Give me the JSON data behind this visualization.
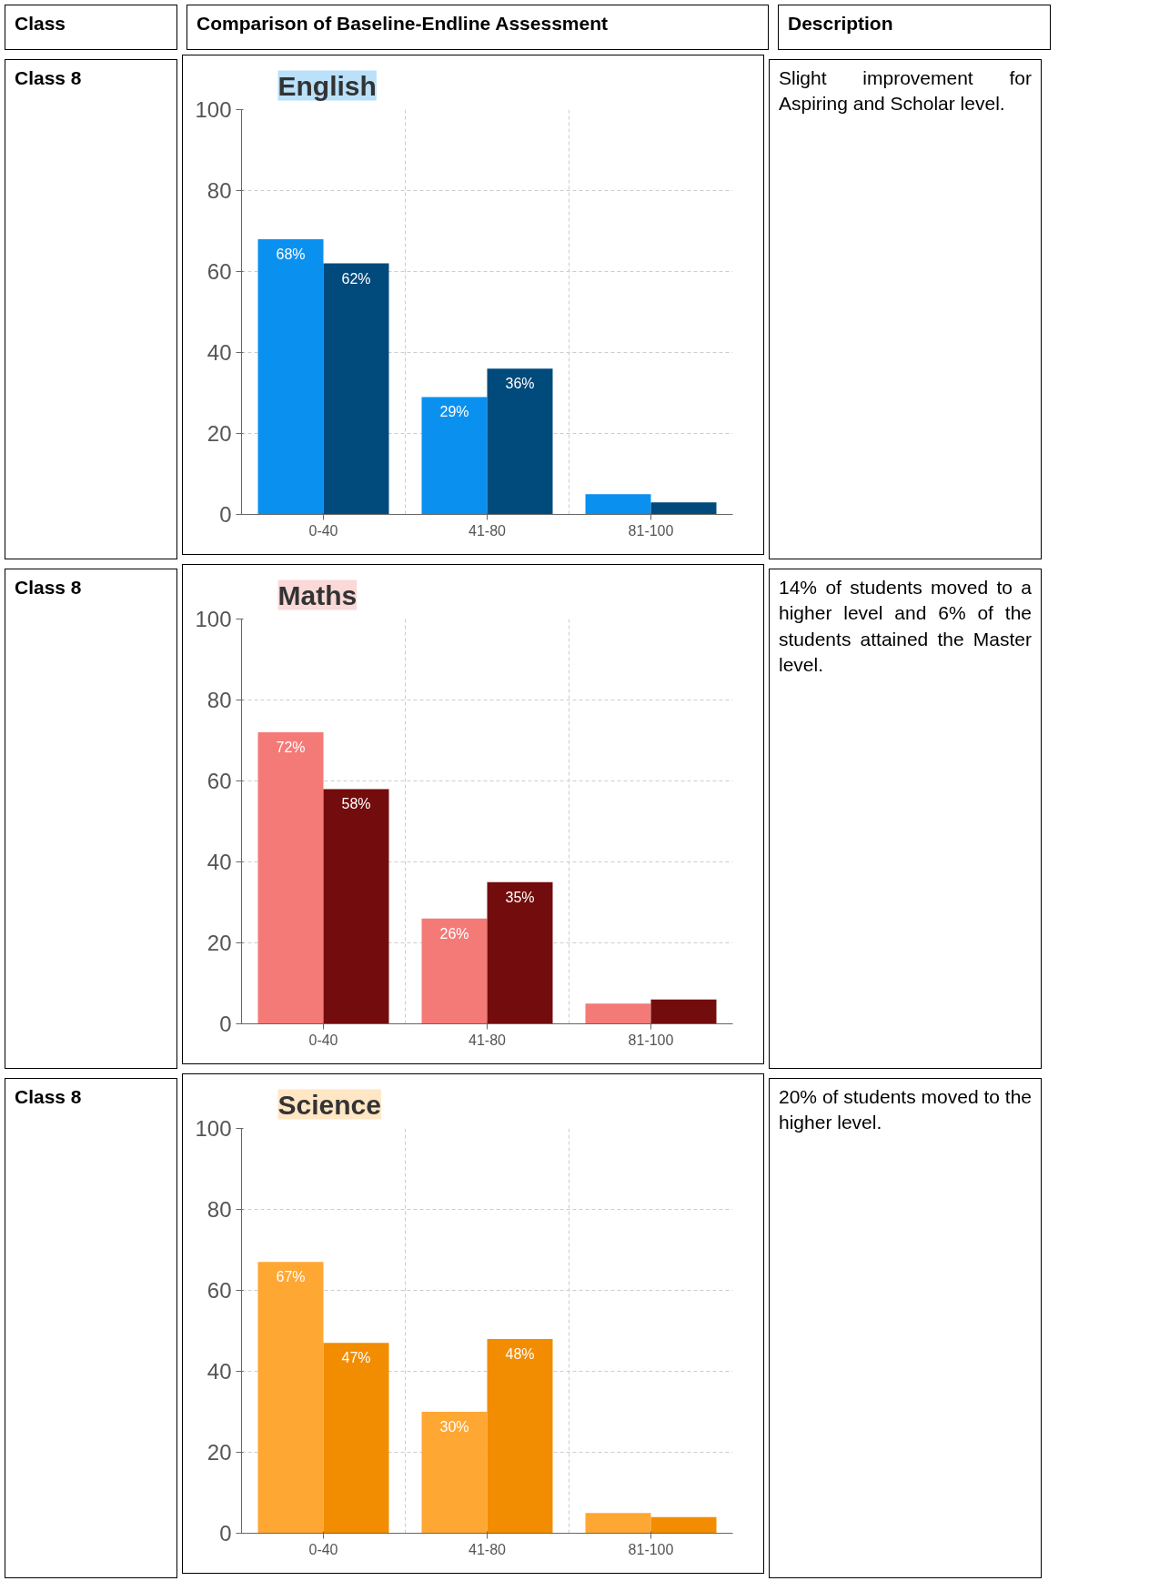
{
  "chart_data": [
    {
      "type": "bar",
      "title": "English",
      "categories": [
        "0-40",
        "41-80",
        "81-100"
      ],
      "ylim": [
        0,
        100
      ],
      "yticks": [
        0,
        20,
        40,
        60,
        80,
        100
      ],
      "grid": true,
      "series": [
        {
          "color": "#0a91f0",
          "values": [
            68,
            29,
            5
          ],
          "value_labels": [
            "68%",
            "29%",
            null
          ]
        },
        {
          "color": "#004a7c",
          "values": [
            62,
            36,
            3
          ],
          "value_labels": [
            "62%",
            "36%",
            null
          ]
        }
      ],
      "annotations": [
        "Class",
        "Comparison of Baseline-Endline Assessment",
        "Description",
        "Class 8",
        "Slight improvement for Aspiring and Scholar level."
      ]
    },
    {
      "type": "bar",
      "title": "Maths",
      "categories": [
        "0-40",
        "41-80",
        "81-100"
      ],
      "ylim": [
        0,
        100
      ],
      "yticks": [
        0,
        20,
        40,
        60,
        80,
        100
      ],
      "grid": true,
      "series": [
        {
          "color": "#f47a78",
          "values": [
            72,
            26,
            5
          ],
          "value_labels": [
            "72%",
            "26%",
            null
          ]
        },
        {
          "color": "#730c0c",
          "values": [
            58,
            35,
            6
          ],
          "value_labels": [
            "58%",
            "35%",
            null
          ]
        }
      ],
      "annotations": [
        "Class 8",
        "14% of students moved to a higher level and 6% of the students attained the Master level."
      ]
    },
    {
      "type": "bar",
      "title": "Science",
      "categories": [
        "0-40",
        "41-80",
        "81-100"
      ],
      "ylim": [
        0,
        100
      ],
      "yticks": [
        0,
        20,
        40,
        60,
        80,
        100
      ],
      "grid": true,
      "series": [
        {
          "color": "#ffa733",
          "values": [
            67,
            30,
            5
          ],
          "value_labels": [
            "67%",
            "30%",
            null
          ]
        },
        {
          "color": "#f28c00",
          "values": [
            47,
            48,
            4
          ],
          "value_labels": [
            "47%",
            "48%",
            null
          ]
        }
      ],
      "annotations": [
        "Class 8",
        "20% of students moved to the higher level."
      ]
    }
  ]
}
